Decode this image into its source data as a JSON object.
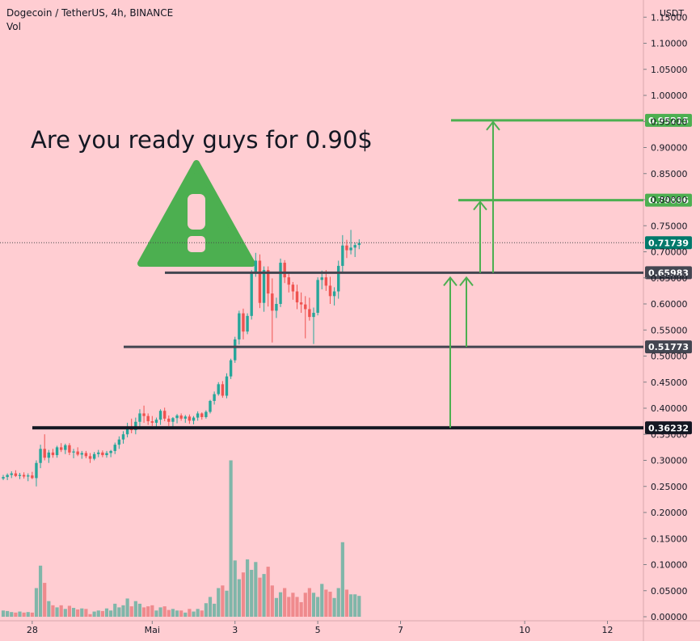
{
  "header": {
    "symbol": "Dogecoin / TetherUS, 4h, BINANCE",
    "volume_label": "Vol"
  },
  "headline": "Are you ready guys for 0.90$",
  "warning_icon": "warning-triangle-icon",
  "colors": {
    "background": "#ffcdd2",
    "up": "#26a69a",
    "down": "#ef5350",
    "vol_up": "#80b6a9",
    "vol_down": "#ef8a8d",
    "target": "#4caf50",
    "support": "#434651",
    "current": "#00796b"
  },
  "chart_data": {
    "type": "candlestick",
    "currency": "USDT",
    "ylim": [
      0.0,
      1.15
    ],
    "y_ticks": [
      "1.15000",
      "1.10000",
      "1.05000",
      "1.00000",
      "0.95000",
      "0.90000",
      "0.85000",
      "0.80000",
      "0.75000",
      "0.70000",
      "0.65000",
      "0.60000",
      "0.55000",
      "0.50000",
      "0.45000",
      "0.40000",
      "0.35000",
      "0.30000",
      "0.25000",
      "0.20000",
      "0.15000",
      "0.10000",
      "0.05000",
      "0.00000"
    ],
    "x_ticks": [
      {
        "label": "28",
        "bar": 7
      },
      {
        "label": "Mai",
        "bar": 36
      },
      {
        "label": "3",
        "bar": 56
      },
      {
        "label": "5",
        "bar": 76
      },
      {
        "label": "7",
        "bar": 96
      },
      {
        "label": "10",
        "bar": 126
      },
      {
        "label": "12",
        "bar": 146
      }
    ],
    "candles": [
      [
        0.265,
        0.272,
        0.262,
        0.268,
        0.012
      ],
      [
        0.268,
        0.275,
        0.262,
        0.272,
        0.011
      ],
      [
        0.272,
        0.279,
        0.266,
        0.275,
        0.009
      ],
      [
        0.275,
        0.281,
        0.268,
        0.27,
        0.008
      ],
      [
        0.27,
        0.276,
        0.264,
        0.272,
        0.01
      ],
      [
        0.272,
        0.277,
        0.265,
        0.269,
        0.008
      ],
      [
        0.269,
        0.275,
        0.26,
        0.271,
        0.009
      ],
      [
        0.271,
        0.278,
        0.264,
        0.266,
        0.008
      ],
      [
        0.266,
        0.3,
        0.25,
        0.295,
        0.055
      ],
      [
        0.295,
        0.33,
        0.285,
        0.322,
        0.098
      ],
      [
        0.322,
        0.35,
        0.3,
        0.305,
        0.065
      ],
      [
        0.305,
        0.32,
        0.295,
        0.315,
        0.03
      ],
      [
        0.315,
        0.322,
        0.305,
        0.31,
        0.022
      ],
      [
        0.31,
        0.328,
        0.305,
        0.325,
        0.018
      ],
      [
        0.325,
        0.333,
        0.316,
        0.32,
        0.022
      ],
      [
        0.32,
        0.332,
        0.312,
        0.329,
        0.015
      ],
      [
        0.329,
        0.333,
        0.31,
        0.315,
        0.021
      ],
      [
        0.315,
        0.322,
        0.304,
        0.317,
        0.017
      ],
      [
        0.317,
        0.325,
        0.308,
        0.311,
        0.014
      ],
      [
        0.311,
        0.318,
        0.303,
        0.314,
        0.016
      ],
      [
        0.314,
        0.318,
        0.304,
        0.308,
        0.015
      ],
      [
        0.308,
        0.314,
        0.295,
        0.303,
        0.005
      ],
      [
        0.303,
        0.316,
        0.3,
        0.312,
        0.01
      ],
      [
        0.312,
        0.32,
        0.306,
        0.315,
        0.012
      ],
      [
        0.315,
        0.319,
        0.306,
        0.31,
        0.011
      ],
      [
        0.31,
        0.318,
        0.305,
        0.314,
        0.016
      ],
      [
        0.314,
        0.32,
        0.306,
        0.318,
        0.012
      ],
      [
        0.318,
        0.334,
        0.312,
        0.33,
        0.025
      ],
      [
        0.33,
        0.346,
        0.322,
        0.34,
        0.018
      ],
      [
        0.34,
        0.356,
        0.332,
        0.35,
        0.022
      ],
      [
        0.35,
        0.372,
        0.344,
        0.365,
        0.035
      ],
      [
        0.365,
        0.38,
        0.352,
        0.358,
        0.02
      ],
      [
        0.358,
        0.382,
        0.35,
        0.374,
        0.03
      ],
      [
        0.374,
        0.398,
        0.362,
        0.39,
        0.025
      ],
      [
        0.39,
        0.405,
        0.372,
        0.385,
        0.018
      ],
      [
        0.385,
        0.39,
        0.368,
        0.375,
        0.02
      ],
      [
        0.375,
        0.385,
        0.366,
        0.372,
        0.022
      ],
      [
        0.372,
        0.382,
        0.362,
        0.378,
        0.012
      ],
      [
        0.378,
        0.398,
        0.368,
        0.395,
        0.018
      ],
      [
        0.395,
        0.401,
        0.375,
        0.38,
        0.02
      ],
      [
        0.38,
        0.386,
        0.366,
        0.374,
        0.013
      ],
      [
        0.374,
        0.383,
        0.364,
        0.381,
        0.015
      ],
      [
        0.381,
        0.389,
        0.371,
        0.386,
        0.012
      ],
      [
        0.386,
        0.39,
        0.376,
        0.38,
        0.012
      ],
      [
        0.38,
        0.387,
        0.372,
        0.384,
        0.008
      ],
      [
        0.384,
        0.388,
        0.37,
        0.376,
        0.015
      ],
      [
        0.376,
        0.385,
        0.369,
        0.382,
        0.01
      ],
      [
        0.382,
        0.394,
        0.376,
        0.39,
        0.015
      ],
      [
        0.39,
        0.392,
        0.378,
        0.383,
        0.012
      ],
      [
        0.383,
        0.396,
        0.38,
        0.393,
        0.026
      ],
      [
        0.393,
        0.416,
        0.39,
        0.414,
        0.038
      ],
      [
        0.414,
        0.432,
        0.407,
        0.427,
        0.025
      ],
      [
        0.427,
        0.45,
        0.424,
        0.446,
        0.055
      ],
      [
        0.446,
        0.452,
        0.42,
        0.424,
        0.06
      ],
      [
        0.424,
        0.467,
        0.419,
        0.461,
        0.05
      ],
      [
        0.461,
        0.495,
        0.456,
        0.492,
        0.3
      ],
      [
        0.492,
        0.537,
        0.487,
        0.532,
        0.108
      ],
      [
        0.532,
        0.587,
        0.522,
        0.582,
        0.072
      ],
      [
        0.582,
        0.591,
        0.532,
        0.547,
        0.085
      ],
      [
        0.547,
        0.582,
        0.542,
        0.577,
        0.11
      ],
      [
        0.577,
        0.665,
        0.57,
        0.66,
        0.09
      ],
      [
        0.66,
        0.698,
        0.652,
        0.683,
        0.105
      ],
      [
        0.683,
        0.695,
        0.592,
        0.602,
        0.075
      ],
      [
        0.602,
        0.672,
        0.585,
        0.665,
        0.082
      ],
      [
        0.665,
        0.672,
        0.595,
        0.62,
        0.096
      ],
      [
        0.62,
        0.649,
        0.526,
        0.587,
        0.06
      ],
      [
        0.587,
        0.612,
        0.573,
        0.6,
        0.036
      ],
      [
        0.6,
        0.687,
        0.594,
        0.679,
        0.047
      ],
      [
        0.679,
        0.684,
        0.64,
        0.651,
        0.055
      ],
      [
        0.651,
        0.66,
        0.622,
        0.637,
        0.038
      ],
      [
        0.637,
        0.642,
        0.608,
        0.624,
        0.046
      ],
      [
        0.624,
        0.637,
        0.59,
        0.603,
        0.038
      ],
      [
        0.603,
        0.622,
        0.583,
        0.599,
        0.028
      ],
      [
        0.599,
        0.615,
        0.534,
        0.59,
        0.046
      ],
      [
        0.59,
        0.612,
        0.568,
        0.575,
        0.055
      ],
      [
        0.575,
        0.593,
        0.523,
        0.583,
        0.046
      ],
      [
        0.583,
        0.651,
        0.578,
        0.646,
        0.038
      ],
      [
        0.646,
        0.664,
        0.628,
        0.651,
        0.063
      ],
      [
        0.651,
        0.665,
        0.625,
        0.635,
        0.052
      ],
      [
        0.635,
        0.652,
        0.6,
        0.615,
        0.048
      ],
      [
        0.615,
        0.632,
        0.597,
        0.624,
        0.036
      ],
      [
        0.624,
        0.683,
        0.61,
        0.673,
        0.055
      ],
      [
        0.673,
        0.732,
        0.662,
        0.712,
        0.143
      ],
      [
        0.712,
        0.723,
        0.688,
        0.703,
        0.052
      ],
      [
        0.703,
        0.742,
        0.695,
        0.708,
        0.043
      ],
      [
        0.708,
        0.718,
        0.69,
        0.713,
        0.043
      ],
      [
        0.713,
        0.724,
        0.705,
        0.717,
        0.04
      ]
    ]
  },
  "levels": [
    {
      "value": 0.95215,
      "label": "0.95215",
      "kind": "target"
    },
    {
      "value": 0.79896,
      "label": "0.79896",
      "kind": "target"
    },
    {
      "value": 0.71739,
      "label": "0.71739",
      "kind": "current"
    },
    {
      "value": 0.65983,
      "label": "0.65983",
      "kind": "support"
    },
    {
      "value": 0.51773,
      "label": "0.51773",
      "kind": "support"
    },
    {
      "value": 0.36232,
      "label": "0.36232",
      "kind": "support-strong"
    }
  ]
}
